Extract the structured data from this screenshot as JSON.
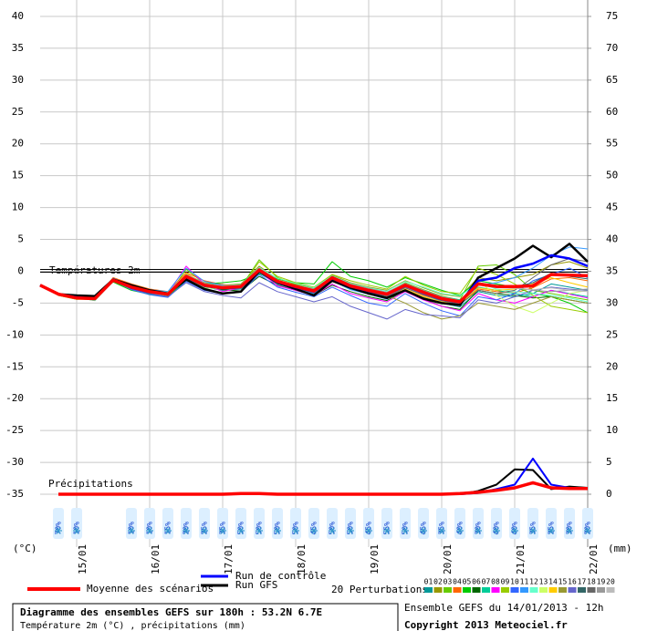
{
  "chart_data": {
    "type": "line",
    "title": "Diagramme des ensembles GEFS sur 180h : 53.2N 6.7E",
    "subtitle": "Température 2m (°C) , précipitations (mm)",
    "run_info": "Ensemble GEFS du 14/01/2013 - 12h",
    "copyright": "Copyright 2013 Meteociel.fr",
    "y_label": "(°C)",
    "y2_label": "(mm)",
    "annotations": [
      "Températures 2m",
      "Précipitations"
    ],
    "perturbations_label": "20 Perturbations",
    "grid": true,
    "xlim": [
      0,
      180
    ],
    "xticks": [
      {
        "value": 12,
        "label": "15/01"
      },
      {
        "value": 36,
        "label": "16/01"
      },
      {
        "value": 60,
        "label": "17/01"
      },
      {
        "value": 84,
        "label": "18/01"
      },
      {
        "value": 108,
        "label": "19/01"
      },
      {
        "value": 132,
        "label": "20/01"
      },
      {
        "value": 156,
        "label": "21/01"
      },
      {
        "value": 180,
        "label": "22/01"
      }
    ],
    "ylim": [
      -35,
      40
    ],
    "yticks": [
      40,
      35,
      30,
      25,
      20,
      15,
      10,
      5,
      0,
      -5,
      -10,
      -15,
      -20,
      -25,
      -30,
      -35
    ],
    "y2lim": [
      0,
      75
    ],
    "y2ticks": [
      75,
      70,
      65,
      60,
      55,
      50,
      45,
      40,
      35,
      30,
      25,
      20,
      15,
      10,
      5,
      0
    ],
    "x": [
      0,
      6,
      12,
      18,
      24,
      30,
      36,
      42,
      48,
      54,
      60,
      66,
      72,
      78,
      84,
      90,
      96,
      102,
      108,
      114,
      120,
      126,
      132,
      138,
      144,
      150,
      156,
      162,
      168,
      174,
      180
    ],
    "series": [
      {
        "name": "Moyenne des scénarios",
        "color": "#ff0000",
        "width": 3.5,
        "values": [
          -2.2,
          -3.6,
          -4.2,
          -4.3,
          -1.4,
          -2.5,
          -3.2,
          -3.6,
          -0.8,
          -2.2,
          -2.6,
          -2.4,
          0.2,
          -1.6,
          -2.4,
          -3.1,
          -1.0,
          -2.3,
          -3.0,
          -3.6,
          -2.2,
          -3.3,
          -4.3,
          -4.8,
          -2.0,
          -2.4,
          -2.4,
          -2.3,
          -0.5,
          -0.6,
          -0.7
        ]
      },
      {
        "name": "Run de contrôle",
        "color": "#0000ff",
        "width": 2.5,
        "values": [
          -2.2,
          -3.6,
          -4.1,
          -4.3,
          -1.4,
          -2.6,
          -3.3,
          -3.6,
          -0.9,
          -2.3,
          -2.7,
          -2.5,
          0.1,
          -1.7,
          -2.5,
          -3.2,
          -1.1,
          -2.4,
          -3.1,
          -3.7,
          -2.3,
          -3.4,
          -4.4,
          -4.9,
          -1.5,
          -1.0,
          0.5,
          1.2,
          2.5,
          2.0,
          0.8
        ]
      },
      {
        "name": "Run GFS",
        "color": "#000000",
        "width": 2.5,
        "values": [
          -2.2,
          -3.6,
          -3.8,
          -3.9,
          -1.3,
          -2.2,
          -3.0,
          -3.5,
          -1.3,
          -2.8,
          -3.5,
          -3.2,
          0.0,
          -1.8,
          -2.8,
          -3.8,
          -1.5,
          -2.6,
          -3.5,
          -4.2,
          -3.0,
          -4.3,
          -5.0,
          -5.3,
          -1.0,
          0.5,
          2.0,
          4.0,
          2.2,
          4.3,
          1.5
        ]
      },
      {
        "name": "01",
        "color": "#009999",
        "width": 1,
        "values": [
          -2.2,
          -3.5,
          -4.0,
          -4.5,
          -1.6,
          -2.8,
          -3.5,
          -3.9,
          -1.2,
          -2.5,
          -3.0,
          -2.8,
          -0.3,
          -2.0,
          -2.8,
          -3.6,
          -1.4,
          -2.8,
          -3.6,
          -4.2,
          -2.9,
          -4.1,
          -5.0,
          -5.6,
          -3.2,
          -3.8,
          -4.0,
          -3.5,
          -2.0,
          -2.5,
          -3.0
        ]
      },
      {
        "name": "02",
        "color": "#999900",
        "width": 1,
        "values": [
          -2.2,
          -3.7,
          -4.3,
          -4.1,
          -1.2,
          -2.3,
          -2.9,
          -3.3,
          -0.5,
          -1.8,
          -2.2,
          -2.0,
          0.8,
          -1.2,
          -2.0,
          -2.7,
          -0.6,
          -1.8,
          -2.5,
          -3.0,
          -1.5,
          -2.6,
          -3.6,
          -4.0,
          -1.0,
          -1.5,
          -1.0,
          -0.5,
          1.0,
          1.5,
          0.5
        ]
      },
      {
        "name": "03",
        "color": "#66cc00",
        "width": 1,
        "values": [
          -2.2,
          -3.6,
          -4.1,
          -4.6,
          -1.5,
          -2.6,
          -3.4,
          -3.8,
          0.3,
          -1.9,
          -2.7,
          -2.5,
          1.8,
          -1.0,
          -2.1,
          -3.0,
          -0.8,
          -2.0,
          -2.8,
          -3.4,
          -1.8,
          -2.9,
          -3.9,
          -4.5,
          0.8,
          1.0,
          -0.5,
          -3.0,
          -3.5,
          -4.0,
          -4.5
        ]
      },
      {
        "name": "04",
        "color": "#ff6600",
        "width": 1,
        "values": [
          -2.2,
          -3.5,
          -4.2,
          -4.4,
          -1.0,
          -2.0,
          -2.8,
          -3.2,
          -0.2,
          -1.5,
          -2.1,
          -2.3,
          0.5,
          -1.4,
          -2.2,
          -3.2,
          -1.1,
          -2.4,
          -3.2,
          -4.0,
          -2.6,
          -3.8,
          -4.6,
          -5.1,
          -2.8,
          -3.2,
          -3.4,
          -2.6,
          -1.2,
          -1.0,
          -1.5
        ]
      },
      {
        "name": "05",
        "color": "#00cc00",
        "width": 1,
        "values": [
          -2.2,
          -3.8,
          -4.4,
          -4.2,
          -1.7,
          -3.0,
          -3.6,
          -4.0,
          -1.5,
          -2.0,
          -1.8,
          -1.5,
          -0.4,
          -1.2,
          -1.8,
          -2.0,
          1.5,
          -0.8,
          -1.5,
          -2.5,
          -1.0,
          -2.0,
          -3.0,
          -3.8,
          -1.5,
          -2.0,
          -2.5,
          -3.5,
          -4.0,
          -5.0,
          -6.5
        ]
      },
      {
        "name": "06",
        "color": "#006600",
        "width": 1,
        "values": [
          -2.2,
          -3.6,
          -4.2,
          -4.5,
          -1.3,
          -2.7,
          -3.3,
          -3.7,
          -1.0,
          -2.4,
          -2.9,
          -3.1,
          -0.8,
          -2.2,
          -3.0,
          -3.8,
          -2.2,
          -3.2,
          -4.0,
          -4.6,
          -3.0,
          -4.4,
          -5.5,
          -6.0,
          -3.0,
          -3.5,
          -3.8,
          -4.2,
          -4.0,
          -4.5,
          -5.0
        ]
      },
      {
        "name": "07",
        "color": "#00cc99",
        "width": 1,
        "values": [
          -2.2,
          -3.5,
          -4.1,
          -4.3,
          -1.4,
          -2.4,
          -3.0,
          -3.4,
          -0.6,
          -2.0,
          -2.4,
          -2.2,
          0.4,
          -1.5,
          -2.3,
          -2.9,
          -0.9,
          -2.1,
          -2.7,
          -3.3,
          -2.0,
          -3.0,
          -4.0,
          -4.5,
          -2.5,
          -3.0,
          -3.5,
          -4.0,
          -3.0,
          -3.5,
          -4.0
        ]
      },
      {
        "name": "08",
        "color": "#ff00ff",
        "width": 1,
        "values": [
          -2.2,
          -3.7,
          -4.3,
          -4.4,
          -1.2,
          -2.2,
          -3.1,
          -3.5,
          0.8,
          -2.0,
          -3.2,
          -2.6,
          0.0,
          -2.3,
          -3.0,
          -3.8,
          -2.0,
          -3.5,
          -4.2,
          -4.8,
          -3.2,
          -4.5,
          -5.5,
          -6.2,
          -3.5,
          -4.5,
          -5.0,
          -4.0,
          -3.0,
          -3.6,
          -4.2
        ]
      },
      {
        "name": "09",
        "color": "#99cc00",
        "width": 1,
        "values": [
          -2.2,
          -3.6,
          -4.0,
          -4.2,
          -1.5,
          -2.6,
          -3.3,
          -3.6,
          -0.9,
          -2.2,
          -2.5,
          -2.6,
          1.5,
          -0.8,
          -1.8,
          -2.5,
          -0.5,
          -1.5,
          -2.2,
          -2.8,
          -0.8,
          -2.2,
          -3.2,
          -3.5,
          0.5,
          -0.5,
          -2.0,
          -3.8,
          -5.5,
          -6.0,
          -6.5
        ]
      },
      {
        "name": "10",
        "color": "#3366ff",
        "width": 1,
        "values": [
          -2.2,
          -3.5,
          -4.2,
          -4.5,
          -1.3,
          -2.9,
          -3.7,
          -4.1,
          -1.6,
          -3.0,
          -3.5,
          -3.3,
          -0.5,
          -2.5,
          -3.3,
          -4.0,
          -2.5,
          -3.8,
          -5.0,
          -5.5,
          -3.5,
          -5.0,
          -6.2,
          -7.0,
          -4.0,
          -4.5,
          -3.5,
          -1.5,
          -0.5,
          0.5,
          -1.0
        ]
      },
      {
        "name": "11",
        "color": "#3399ff",
        "width": 1,
        "values": [
          -2.2,
          -3.7,
          -4.3,
          -4.2,
          -1.1,
          -2.3,
          -2.9,
          -3.2,
          0.5,
          -1.6,
          -2.2,
          -2.6,
          -0.2,
          -1.8,
          -2.6,
          -3.5,
          -1.5,
          -2.9,
          -3.6,
          -4.4,
          -2.4,
          -3.6,
          -4.8,
          -5.4,
          -2.2,
          -1.8,
          -1.0,
          0.5,
          2.5,
          3.8,
          3.5
        ]
      },
      {
        "name": "12",
        "color": "#66ffcc",
        "width": 1,
        "values": [
          -2.2,
          -3.6,
          -4.1,
          -4.6,
          -1.6,
          -2.5,
          -3.0,
          -3.3,
          -0.4,
          -1.9,
          -2.3,
          -2.1,
          0.6,
          -1.1,
          -1.9,
          -2.6,
          -0.7,
          -1.9,
          -2.6,
          -3.1,
          -1.6,
          -2.5,
          -3.5,
          -3.9,
          -1.8,
          -2.8,
          -3.2,
          -3.5,
          -3.8,
          -4.2,
          -4.8
        ]
      },
      {
        "name": "13",
        "color": "#ccff66",
        "width": 1,
        "values": [
          -2.2,
          -3.5,
          -4.2,
          -4.3,
          -1.4,
          -2.7,
          -3.4,
          -3.8,
          -1.1,
          -2.6,
          -2.8,
          -2.7,
          -0.1,
          -1.9,
          -2.6,
          -3.3,
          -1.2,
          -2.5,
          -3.3,
          -3.9,
          -2.3,
          -3.4,
          -4.5,
          -5.0,
          -1.5,
          -3.8,
          -5.5,
          -6.5,
          -5.0,
          -3.5,
          -3.0
        ]
      },
      {
        "name": "14",
        "color": "#ffcc00",
        "width": 1,
        "values": [
          -2.2,
          -3.8,
          -4.4,
          -4.4,
          -1.5,
          -2.6,
          -3.2,
          -3.7,
          -0.3,
          -2.1,
          -2.5,
          -2.3,
          0.3,
          -1.7,
          -2.5,
          -3.2,
          -1.3,
          -2.6,
          -3.4,
          -4.1,
          -2.8,
          -4.0,
          -4.8,
          -5.2,
          -2.6,
          -3.0,
          -2.8,
          -2.0,
          -1.0,
          -1.8,
          -2.5
        ]
      },
      {
        "name": "15",
        "color": "#999933",
        "width": 1,
        "values": [
          -2.2,
          -3.6,
          -4.2,
          -4.3,
          -1.3,
          -2.4,
          -3.1,
          -3.5,
          -0.7,
          -2.3,
          -2.7,
          -2.5,
          0.1,
          -1.6,
          -2.4,
          -3.0,
          -1.0,
          -2.2,
          -3.0,
          -3.8,
          -5.0,
          -6.5,
          -7.5,
          -7.0,
          -5.0,
          -5.5,
          -6.0,
          -5.0,
          -4.0,
          -4.5,
          -5.0
        ]
      },
      {
        "name": "16",
        "color": "#6666cc",
        "width": 1,
        "values": [
          -2.2,
          -3.5,
          -4.0,
          -4.4,
          -1.5,
          -2.8,
          -3.5,
          -4.0,
          -1.8,
          -3.2,
          -3.8,
          -4.2,
          -1.8,
          -3.2,
          -4.0,
          -4.8,
          -4.0,
          -5.5,
          -6.5,
          -7.5,
          -6.0,
          -6.8,
          -7.0,
          -7.3,
          -4.5,
          -5.0,
          -4.0,
          -3.0,
          -2.5,
          -2.8,
          -3.0
        ]
      },
      {
        "name": "17",
        "color": "#336666",
        "width": 1,
        "values": [
          -2.2,
          -3.7,
          -4.3,
          -4.3,
          -1.4,
          -2.5,
          -3.2,
          -3.6,
          -0.6,
          -2.2,
          -2.6,
          -2.4,
          0.2,
          -1.6,
          -2.4,
          -3.1,
          -1.0,
          -2.3,
          -3.1,
          -3.7,
          -2.2,
          -3.4,
          -4.3,
          -4.9,
          -2.0,
          -2.5,
          -2.5,
          -1.8,
          -0.3,
          -0.8,
          -1.2
        ]
      },
      {
        "name": "18",
        "color": "#666666",
        "width": 1,
        "values": [
          -2.2,
          -3.6,
          -4.3,
          -4.5,
          -1.6,
          -2.7,
          -3.3,
          -3.8,
          -0.9,
          -2.4,
          -2.8,
          -2.7,
          -0.1,
          -1.8,
          -2.7,
          -3.4,
          -1.3,
          -2.5,
          -3.3,
          -4.0,
          -2.6,
          -3.7,
          -4.6,
          -5.2,
          -3.0,
          -3.5,
          -3.0,
          -1.0,
          1.0,
          2.0,
          1.5
        ]
      },
      {
        "name": "19",
        "color": "#999999",
        "width": 1,
        "values": [
          -2.2,
          -3.5,
          -4.1,
          -4.2,
          -1.2,
          -2.3,
          -3.0,
          -3.4,
          -0.5,
          -1.9,
          -2.3,
          -2.2,
          0.5,
          -1.4,
          -2.2,
          -2.8,
          -0.8,
          -2.0,
          -2.7,
          -3.3,
          -1.9,
          -3.0,
          -4.0,
          -4.6,
          -1.8,
          -2.2,
          -2.5,
          -3.0,
          -3.2,
          -3.0,
          -2.8
        ]
      },
      {
        "name": "20",
        "color": "#bbbbbb",
        "width": 1,
        "values": [
          -2.2,
          -3.6,
          -4.2,
          -4.4,
          -1.4,
          -2.5,
          -3.2,
          -3.7,
          -0.8,
          -2.2,
          -2.6,
          -2.5,
          0.2,
          -1.7,
          -2.5,
          -3.1,
          -1.1,
          -2.3,
          -3.0,
          -3.6,
          -2.3,
          -3.3,
          -4.3,
          -4.8,
          -2.1,
          -2.6,
          -2.7,
          -2.9,
          -2.6,
          -3.0,
          -3.2
        ]
      }
    ],
    "precip_series": [
      {
        "color": "#000000",
        "width": 2,
        "axis": "y2",
        "values": [
          null,
          0,
          0,
          0,
          0,
          0,
          0,
          0,
          0,
          0,
          0,
          0,
          0.1,
          0,
          0,
          0,
          0,
          0,
          0,
          0,
          0,
          0,
          0,
          0,
          0.5,
          1.5,
          3.9,
          3.8,
          0.8,
          1.2,
          1.0
        ]
      },
      {
        "color": "#0000ff",
        "width": 2,
        "axis": "y2",
        "values": [
          null,
          0,
          0,
          0,
          0,
          0,
          0,
          0,
          0,
          0,
          0,
          0,
          0,
          0,
          0,
          0,
          0,
          0,
          0,
          0,
          0,
          0,
          0,
          0,
          0.2,
          0.8,
          1.5,
          5.6,
          1.5,
          1.0,
          0.8
        ]
      },
      {
        "color": "#ff0000",
        "width": 3.5,
        "axis": "y2",
        "values": [
          null,
          0,
          0,
          0,
          0,
          0,
          0,
          0,
          0,
          0,
          0,
          0.1,
          0.1,
          0,
          0,
          0,
          0,
          0,
          0,
          0,
          0,
          0,
          0,
          0.1,
          0.3,
          0.6,
          1.0,
          1.8,
          1.0,
          0.9,
          0.9
        ]
      }
    ],
    "snow_probability": {
      "x": [
        6,
        12,
        30,
        36,
        42,
        48,
        54,
        60,
        66,
        72,
        78,
        84,
        90,
        96,
        102,
        108,
        114,
        120,
        126,
        132,
        138,
        144,
        150,
        156,
        162,
        168,
        174,
        180
      ],
      "values": [
        70,
        10,
        10,
        10,
        15,
        20,
        25,
        35,
        50,
        50,
        50,
        50,
        45,
        50,
        50,
        45,
        55,
        50,
        45,
        35,
        40,
        30,
        40,
        40,
        35,
        25,
        30,
        20
      ],
      "value_labels": [
        "70%",
        "10%",
        "10%",
        "10%",
        "15%",
        "20%",
        "25%",
        "35%",
        "50%",
        "50%",
        "50%",
        "50%",
        "45%",
        "50%",
        "50%",
        "45%",
        "55%",
        "50%",
        "45%",
        "35%",
        "40%",
        "30%",
        "40%",
        "40%",
        "35%",
        "25%",
        "30%",
        "20%"
      ]
    }
  }
}
